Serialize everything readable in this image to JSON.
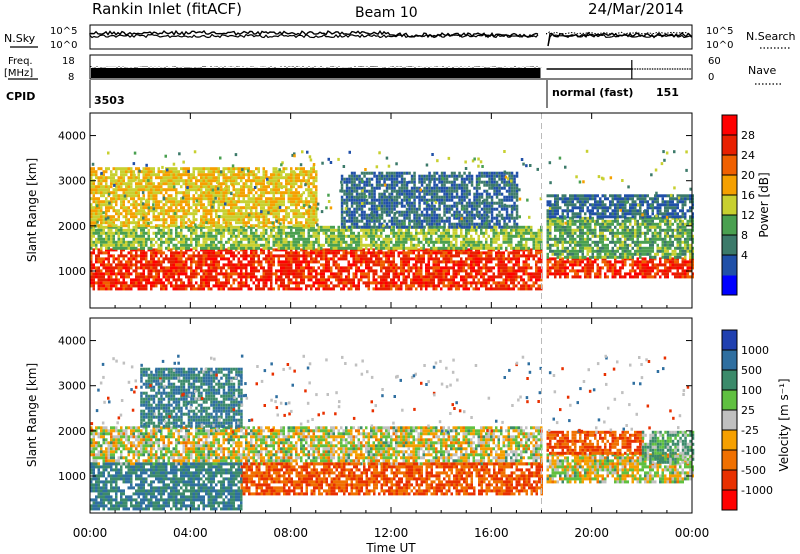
{
  "header": {
    "station": "Rankin Inlet (fitACF)",
    "beam": "Beam 10",
    "date": "24/Mar/2014"
  },
  "panels": {
    "nsky": {
      "left_label": "N.Sky",
      "right_label": "N.Search",
      "ticks_left": [
        "10^5",
        "10^0"
      ],
      "ticks_right": [
        "10^5",
        "10^0"
      ]
    },
    "freq": {
      "left_label_1": "Freq.",
      "left_label_2": "[MHz]",
      "right_label": "Nave",
      "ticks_left": [
        "18",
        "8"
      ],
      "ticks_right": [
        "60",
        "0"
      ]
    },
    "cpid": {
      "label": "CPID",
      "value_1": "3503",
      "value_2": "normal (fast)",
      "value_3": "151"
    }
  },
  "colorbars": {
    "power": {
      "label": "Power [dB]",
      "ticks": [
        "28",
        "24",
        "20",
        "16",
        "12",
        "8",
        "4"
      ],
      "colors": [
        "#0000ff",
        "#2050a8",
        "#3c7a6a",
        "#4aa050",
        "#c8d030",
        "#f5a000",
        "#f06000",
        "#e82000",
        "#ff0000"
      ]
    },
    "velocity": {
      "label": "Velocity [m s⁻¹]",
      "ticks": [
        "1000",
        "500",
        "100",
        "25",
        "-25",
        "-100",
        "-500",
        "-1000"
      ],
      "colors": [
        "#2040b0",
        "#2f6fa0",
        "#3b8a6a",
        "#60c040",
        "#c0c0c0",
        "#f5a000",
        "#f07000",
        "#e83000",
        "#ff0000"
      ]
    }
  },
  "axes": {
    "xlabel": "Time UT",
    "xticks": [
      "00:00",
      "04:00",
      "08:00",
      "12:00",
      "16:00",
      "20:00",
      "00:00"
    ],
    "ylabel": "Slant Range [km]",
    "yticks": [
      "1000",
      "2000",
      "3000",
      "4000"
    ]
  },
  "chart_data": [
    {
      "type": "heatmap",
      "name": "power",
      "x_range_hours": [
        0,
        24
      ],
      "y_range_km": [
        180,
        4500
      ],
      "x_ticks_hours": [
        0,
        4,
        8,
        12,
        16,
        20,
        24
      ],
      "y_ticks_km": [
        1000,
        2000,
        3000,
        4000
      ],
      "data_gap_hours": [
        18.0,
        18.2
      ],
      "bands": [
        {
          "t_start": 0.0,
          "t_end": 18.0,
          "range_low_km": 600,
          "range_high_km": 1500,
          "power_db": 28
        },
        {
          "t_start": 0.0,
          "t_end": 18.0,
          "range_low_km": 1500,
          "range_high_km": 2000,
          "power_db": 14
        },
        {
          "t_start": 0.0,
          "t_end": 9.0,
          "range_low_km": 2000,
          "range_high_km": 3300,
          "power_db": 18
        },
        {
          "t_start": 10.0,
          "t_end": 17.0,
          "range_low_km": 2000,
          "range_high_km": 3200,
          "power_db": 6
        },
        {
          "t_start": 18.2,
          "t_end": 24.0,
          "range_low_km": 900,
          "range_high_km": 1300,
          "power_db": 28
        },
        {
          "t_start": 18.2,
          "t_end": 24.0,
          "range_low_km": 1300,
          "range_high_km": 2200,
          "power_db": 12
        },
        {
          "t_start": 18.2,
          "t_end": 24.0,
          "range_low_km": 2200,
          "range_high_km": 2700,
          "power_db": 6
        }
      ]
    },
    {
      "type": "heatmap",
      "name": "velocity",
      "x_range_hours": [
        0,
        24
      ],
      "y_range_km": [
        180,
        4500
      ],
      "x_ticks_hours": [
        0,
        4,
        8,
        12,
        16,
        20,
        24
      ],
      "y_ticks_km": [
        1000,
        2000,
        3000,
        4000
      ],
      "data_gap_hours": [
        18.0,
        18.2
      ],
      "bands": [
        {
          "t_start": 0.0,
          "t_end": 18.0,
          "range_low_km": 1300,
          "range_high_km": 2100,
          "velocity_ms": 0
        },
        {
          "t_start": 6.0,
          "t_end": 18.0,
          "range_low_km": 600,
          "range_high_km": 1300,
          "velocity_ms": -300
        },
        {
          "t_start": 0.0,
          "t_end": 6.0,
          "range_low_km": 300,
          "range_high_km": 1300,
          "velocity_ms": 300
        },
        {
          "t_start": 2.0,
          "t_end": 6.0,
          "range_low_km": 2100,
          "range_high_km": 3400,
          "velocity_ms": 300
        },
        {
          "t_start": 18.2,
          "t_end": 24.0,
          "range_low_km": 900,
          "range_high_km": 1500,
          "velocity_ms": 0
        },
        {
          "t_start": 18.2,
          "t_end": 22.0,
          "range_low_km": 1500,
          "range_high_km": 2000,
          "velocity_ms": -300
        },
        {
          "t_start": 22.0,
          "t_end": 24.0,
          "range_low_km": 1300,
          "range_high_km": 2000,
          "velocity_ms": 100
        }
      ]
    }
  ]
}
